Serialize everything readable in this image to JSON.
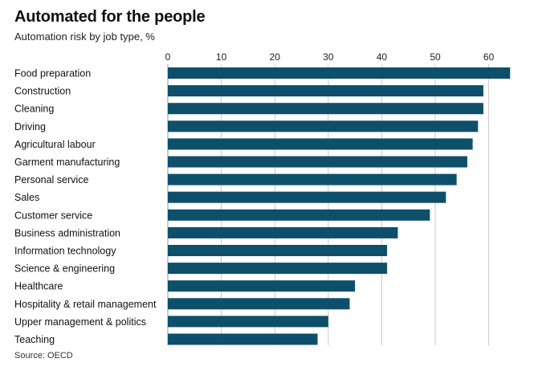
{
  "chart_data": {
    "type": "bar",
    "orientation": "horizontal",
    "title": "Automated for the people",
    "subtitle": "Automation risk by job type, %",
    "source": "Source: OECD",
    "categories": [
      "Food preparation",
      "Construction",
      "Cleaning",
      "Driving",
      "Agricultural labour",
      "Garment manufacturing",
      "Personal service",
      "Sales",
      "Customer service",
      "Business administration",
      "Information technology",
      "Science & engineering",
      "Healthcare",
      "Hospitality & retail management",
      "Upper management & politics",
      "Teaching"
    ],
    "values": [
      64,
      59,
      59,
      58,
      57,
      56,
      54,
      52,
      49,
      43,
      41,
      41,
      35,
      34,
      30,
      28
    ],
    "xlim": [
      0,
      65
    ],
    "xticks": [
      0,
      10,
      20,
      30,
      40,
      50,
      60
    ],
    "axis_position": "top",
    "grid": true,
    "bar_color": "#0e4f6b",
    "grid_color": "#c9c9c9"
  }
}
